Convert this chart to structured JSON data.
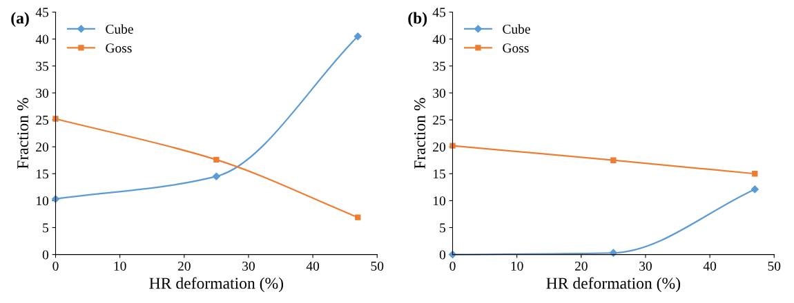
{
  "chart_data": [
    {
      "type": "line",
      "title": "(a)",
      "xlabel": "HR deformation (%)",
      "ylabel": "Fraction %",
      "x": [
        0,
        25,
        47
      ],
      "series": [
        {
          "name": "Cube",
          "color": "#5b9bd5",
          "marker": "diamond",
          "values": [
            10.3,
            14.5,
            40.5
          ]
        },
        {
          "name": "Goss",
          "color": "#ed7d31",
          "marker": "square",
          "values": [
            25.2,
            17.6,
            6.9
          ]
        }
      ],
      "xlim": [
        0,
        50
      ],
      "xticks": [
        0,
        10,
        20,
        30,
        40,
        50
      ],
      "ylim": [
        0,
        45
      ],
      "yticks": [
        0,
        5,
        10,
        15,
        20,
        25,
        30,
        35,
        40,
        45
      ],
      "grid": false,
      "legend": "top left",
      "line_style": "solid"
    },
    {
      "type": "line",
      "title": "(b)",
      "xlabel": "HR deformation (%)",
      "ylabel": "Fraction %",
      "x": [
        0,
        25,
        47
      ],
      "series": [
        {
          "name": "Cube",
          "color": "#5b9bd5",
          "marker": "diamond",
          "values": [
            0,
            0.3,
            12.1
          ]
        },
        {
          "name": "Goss",
          "color": "#ed7d31",
          "marker": "square",
          "values": [
            20.2,
            17.5,
            15.0
          ]
        }
      ],
      "xlim": [
        0,
        50
      ],
      "xticks": [
        0,
        10,
        20,
        30,
        40,
        50
      ],
      "ylim": [
        0,
        45
      ],
      "yticks": [
        0,
        5,
        10,
        15,
        20,
        25,
        30,
        35,
        40,
        45
      ],
      "grid": false,
      "legend": "top left",
      "line_style": "solid"
    }
  ]
}
